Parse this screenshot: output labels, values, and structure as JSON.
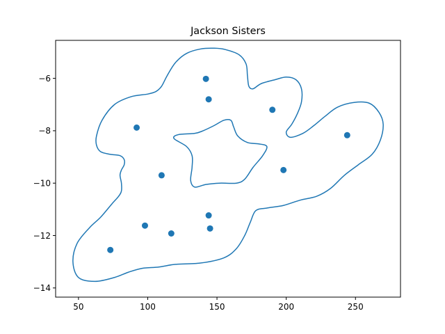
{
  "chart_data": {
    "type": "scatter",
    "title": "Jackson Sisters",
    "xlabel": "",
    "ylabel": "",
    "xlim": [
      33.5,
      282.5
    ],
    "ylim": [
      -14.35,
      -4.55
    ],
    "xticks": [
      50,
      100,
      150,
      200,
      250
    ],
    "yticks": [
      -14,
      -12,
      -10,
      -8,
      -6
    ],
    "grid": false,
    "colors": {
      "series": "#1f77b4",
      "axes": "#000000",
      "background": "#ffffff"
    },
    "points": [
      {
        "x": 73,
        "y": -12.55
      },
      {
        "x": 92,
        "y": -7.88
      },
      {
        "x": 98,
        "y": -11.62
      },
      {
        "x": 110,
        "y": -9.7
      },
      {
        "x": 117,
        "y": -11.92
      },
      {
        "x": 142,
        "y": -6.02
      },
      {
        "x": 144,
        "y": -6.8
      },
      {
        "x": 144,
        "y": -11.23
      },
      {
        "x": 145,
        "y": -11.73
      },
      {
        "x": 190,
        "y": -7.2
      },
      {
        "x": 198,
        "y": -9.5
      },
      {
        "x": 244,
        "y": -8.17
      }
    ],
    "contours": [
      {
        "name": "outer",
        "closed": true,
        "points": [
          [
            62,
            -13.75
          ],
          [
            50,
            -13.6
          ],
          [
            46,
            -13.0
          ],
          [
            49,
            -12.3
          ],
          [
            58,
            -11.7
          ],
          [
            66,
            -11.3
          ],
          [
            74,
            -10.8
          ],
          [
            79,
            -10.5
          ],
          [
            81,
            -10.3
          ],
          [
            81,
            -10.0
          ],
          [
            80,
            -9.7
          ],
          [
            81,
            -9.5
          ],
          [
            83,
            -9.3
          ],
          [
            83,
            -9.1
          ],
          [
            80,
            -8.95
          ],
          [
            73,
            -8.9
          ],
          [
            66,
            -8.8
          ],
          [
            63,
            -8.55
          ],
          [
            63,
            -8.2
          ],
          [
            67,
            -7.6
          ],
          [
            76,
            -7.0
          ],
          [
            88,
            -6.7
          ],
          [
            100,
            -6.6
          ],
          [
            106,
            -6.5
          ],
          [
            110,
            -6.3
          ],
          [
            114,
            -5.9
          ],
          [
            120,
            -5.4
          ],
          [
            128,
            -5.05
          ],
          [
            138,
            -4.88
          ],
          [
            148,
            -4.85
          ],
          [
            156,
            -4.9
          ],
          [
            166,
            -5.1
          ],
          [
            171,
            -5.45
          ],
          [
            172,
            -5.9
          ],
          [
            173,
            -6.3
          ],
          [
            176,
            -6.4
          ],
          [
            182,
            -6.2
          ],
          [
            192,
            -6.05
          ],
          [
            200,
            -5.95
          ],
          [
            207,
            -6.05
          ],
          [
            211,
            -6.4
          ],
          [
            211,
            -6.9
          ],
          [
            208,
            -7.35
          ],
          [
            204,
            -7.75
          ],
          [
            200,
            -8.05
          ],
          [
            203,
            -8.25
          ],
          [
            212,
            -8.1
          ],
          [
            220,
            -7.8
          ],
          [
            228,
            -7.45
          ],
          [
            237,
            -7.1
          ],
          [
            249,
            -6.92
          ],
          [
            260,
            -6.95
          ],
          [
            267,
            -7.3
          ],
          [
            270,
            -7.75
          ],
          [
            268,
            -8.35
          ],
          [
            262,
            -8.9
          ],
          [
            252,
            -9.3
          ],
          [
            242,
            -9.7
          ],
          [
            232,
            -10.2
          ],
          [
            222,
            -10.5
          ],
          [
            210,
            -10.65
          ],
          [
            198,
            -10.85
          ],
          [
            186,
            -10.95
          ],
          [
            178,
            -11.05
          ],
          [
            174,
            -11.5
          ],
          [
            170,
            -12.0
          ],
          [
            164,
            -12.5
          ],
          [
            155,
            -12.85
          ],
          [
            138,
            -13.05
          ],
          [
            120,
            -13.1
          ],
          [
            108,
            -13.2
          ],
          [
            96,
            -13.25
          ],
          [
            86,
            -13.4
          ],
          [
            76,
            -13.6
          ]
        ]
      },
      {
        "name": "inner",
        "closed": true,
        "points": [
          [
            134,
            -8.1
          ],
          [
            140,
            -8.0
          ],
          [
            148,
            -7.8
          ],
          [
            155,
            -7.6
          ],
          [
            160,
            -7.6
          ],
          [
            162,
            -7.85
          ],
          [
            165,
            -8.2
          ],
          [
            172,
            -8.45
          ],
          [
            180,
            -8.5
          ],
          [
            186,
            -8.6
          ],
          [
            183,
            -8.95
          ],
          [
            176,
            -9.4
          ],
          [
            170,
            -9.85
          ],
          [
            164,
            -10.0
          ],
          [
            152,
            -10.0
          ],
          [
            142,
            -10.05
          ],
          [
            134,
            -10.15
          ],
          [
            131,
            -9.9
          ],
          [
            132,
            -9.4
          ],
          [
            132,
            -8.95
          ],
          [
            128,
            -8.6
          ],
          [
            119,
            -8.3
          ],
          [
            122,
            -8.15
          ]
        ]
      }
    ]
  }
}
